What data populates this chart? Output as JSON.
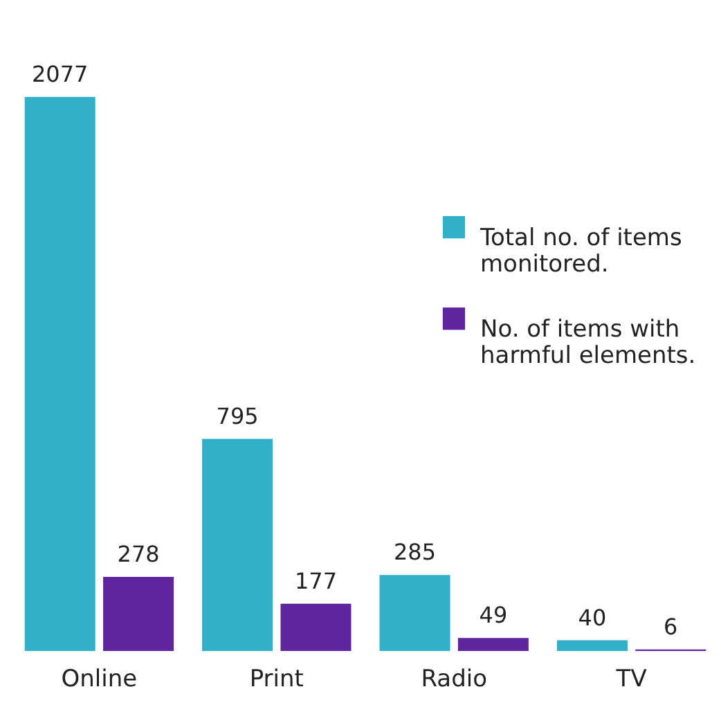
{
  "chart_data": {
    "type": "bar",
    "categories": [
      "Online",
      "Print",
      "Radio",
      "TV"
    ],
    "series": [
      {
        "name": "Total no. of items monitored.",
        "color": "#32b0c9",
        "values": [
          2077,
          795,
          285,
          40
        ]
      },
      {
        "name": "No. of items with harmful elements.",
        "color": "#5e259f",
        "values": [
          278,
          177,
          49,
          6
        ]
      }
    ],
    "data_labels": true,
    "legend": "top right"
  }
}
